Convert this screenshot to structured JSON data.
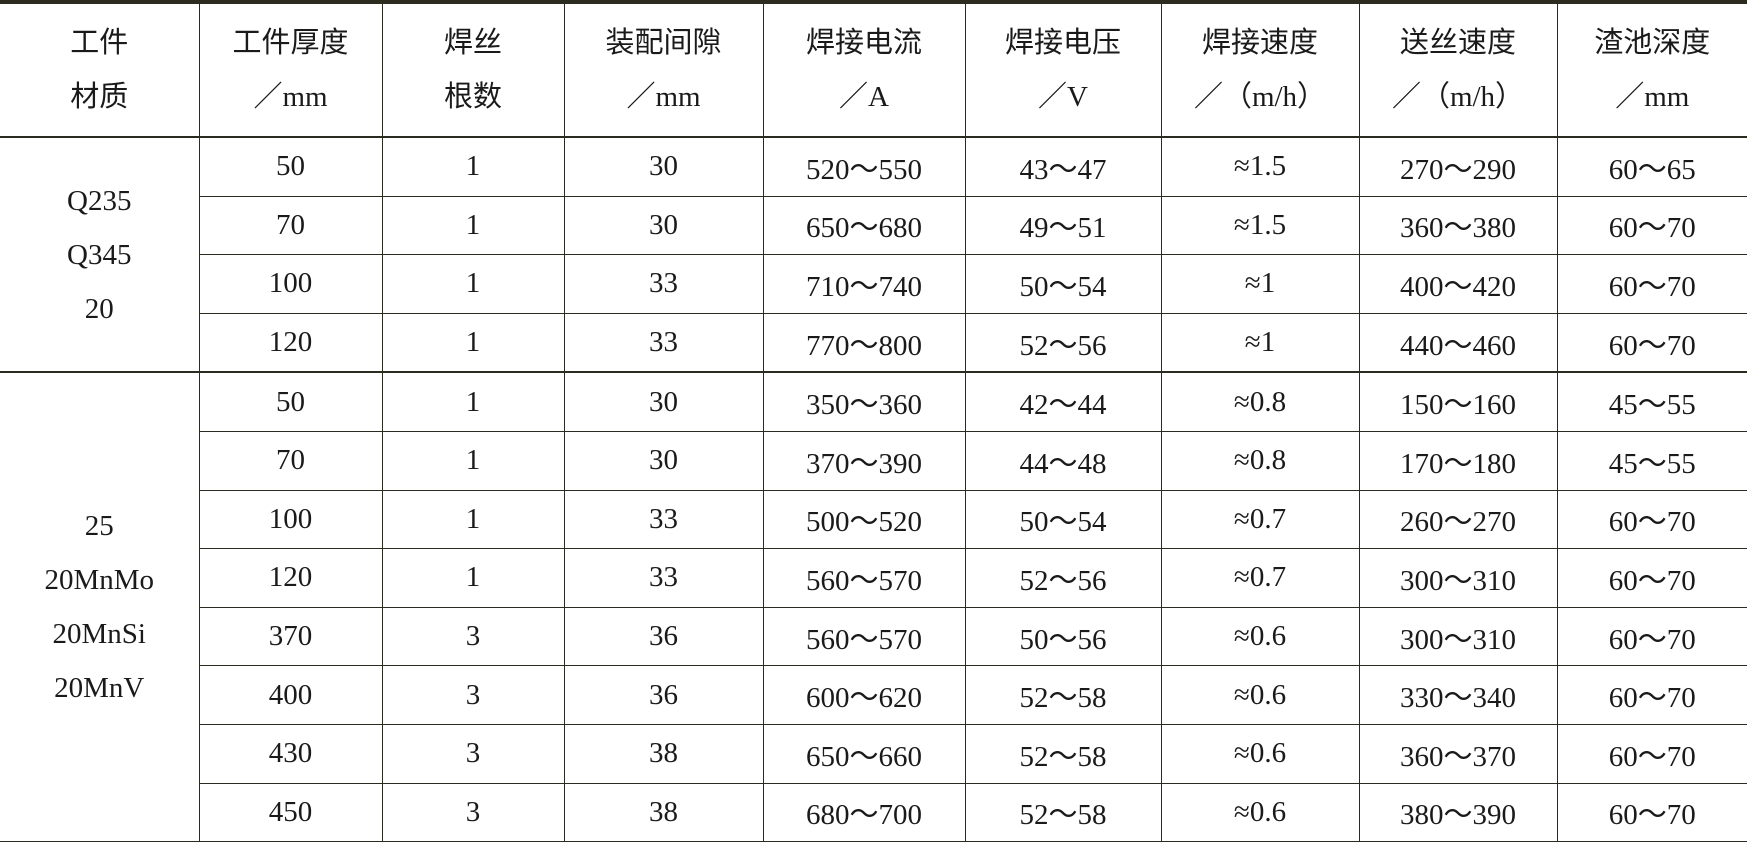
{
  "headers": [
    [
      "工件",
      "材质"
    ],
    [
      "工件厚度",
      "／mm"
    ],
    [
      "焊丝",
      "根数"
    ],
    [
      "装配间隙",
      "／mm"
    ],
    [
      "焊接电流",
      "／A"
    ],
    [
      "焊接电压",
      "／V"
    ],
    [
      "焊接速度",
      "／（m/h）"
    ],
    [
      "送丝速度",
      "／（m/h）"
    ],
    [
      "渣池深度",
      "／mm"
    ]
  ],
  "groups": [
    {
      "material": [
        "Q235",
        "Q345",
        "20"
      ],
      "rows": [
        [
          "50",
          "1",
          "30",
          "520～550",
          "43～47",
          "≈1.5",
          "270～290",
          "60～65"
        ],
        [
          "70",
          "1",
          "30",
          "650～680",
          "49～51",
          "≈1.5",
          "360～380",
          "60～70"
        ],
        [
          "100",
          "1",
          "33",
          "710～740",
          "50～54",
          "≈1",
          "400～420",
          "60～70"
        ],
        [
          "120",
          "1",
          "33",
          "770～800",
          "52～56",
          "≈1",
          "440～460",
          "60～70"
        ]
      ]
    },
    {
      "material": [
        "25",
        "20MnMo",
        "20MnSi",
        "20MnV"
      ],
      "rows": [
        [
          "50",
          "1",
          "30",
          "350～360",
          "42～44",
          "≈0.8",
          "150～160",
          "45～55"
        ],
        [
          "70",
          "1",
          "30",
          "370～390",
          "44～48",
          "≈0.8",
          "170～180",
          "45～55"
        ],
        [
          "100",
          "1",
          "33",
          "500～520",
          "50～54",
          "≈0.7",
          "260～270",
          "60～70"
        ],
        [
          "120",
          "1",
          "33",
          "560～570",
          "52～56",
          "≈0.7",
          "300～310",
          "60～70"
        ],
        [
          "370",
          "3",
          "36",
          "560～570",
          "50～56",
          "≈0.6",
          "300～310",
          "60～70"
        ],
        [
          "400",
          "3",
          "36",
          "600～620",
          "52～58",
          "≈0.6",
          "330～340",
          "60～70"
        ],
        [
          "430",
          "3",
          "38",
          "650～660",
          "52～58",
          "≈0.6",
          "360～370",
          "60～70"
        ],
        [
          "450",
          "3",
          "38",
          "680～700",
          "52～58",
          "≈0.6",
          "380～390",
          "60～70"
        ]
      ]
    }
  ]
}
